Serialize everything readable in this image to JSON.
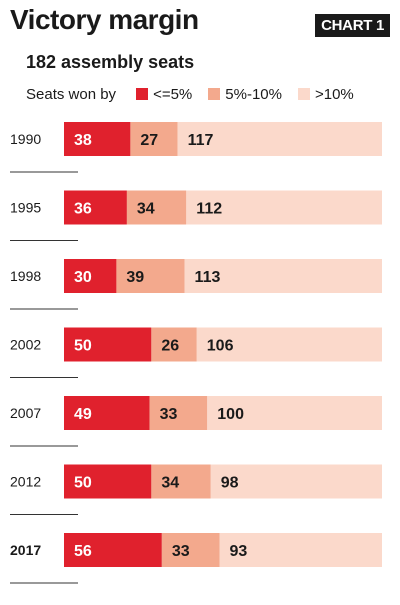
{
  "header": {
    "title": "Victory margin",
    "badge": "CHART 1",
    "subtitle": "182 assembly seats"
  },
  "legend": {
    "lead": "Seats won by",
    "items": [
      "<=5%",
      "5%-10%",
      ">10%"
    ]
  },
  "colors": {
    "low": "#e0212d",
    "mid": "#f3a98d",
    "high": "#fbd9cb",
    "label_light": "#ffffff",
    "label_dark": "#1a1a1a",
    "rule": "#333333"
  },
  "chart_data": {
    "type": "bar",
    "orientation": "horizontal",
    "stacked": true,
    "categories": [
      "1990",
      "1995",
      "1998",
      "2002",
      "2007",
      "2012",
      "2017"
    ],
    "series": [
      {
        "name": "<=5%",
        "values": [
          38,
          36,
          30,
          50,
          49,
          50,
          56
        ]
      },
      {
        "name": "5%-10%",
        "values": [
          27,
          34,
          39,
          26,
          33,
          34,
          33
        ]
      },
      {
        "name": ">10%",
        "values": [
          117,
          112,
          113,
          106,
          100,
          98,
          93
        ]
      }
    ],
    "total": 182,
    "highlight_category": "2017",
    "legend_position": "top",
    "grid": false
  }
}
